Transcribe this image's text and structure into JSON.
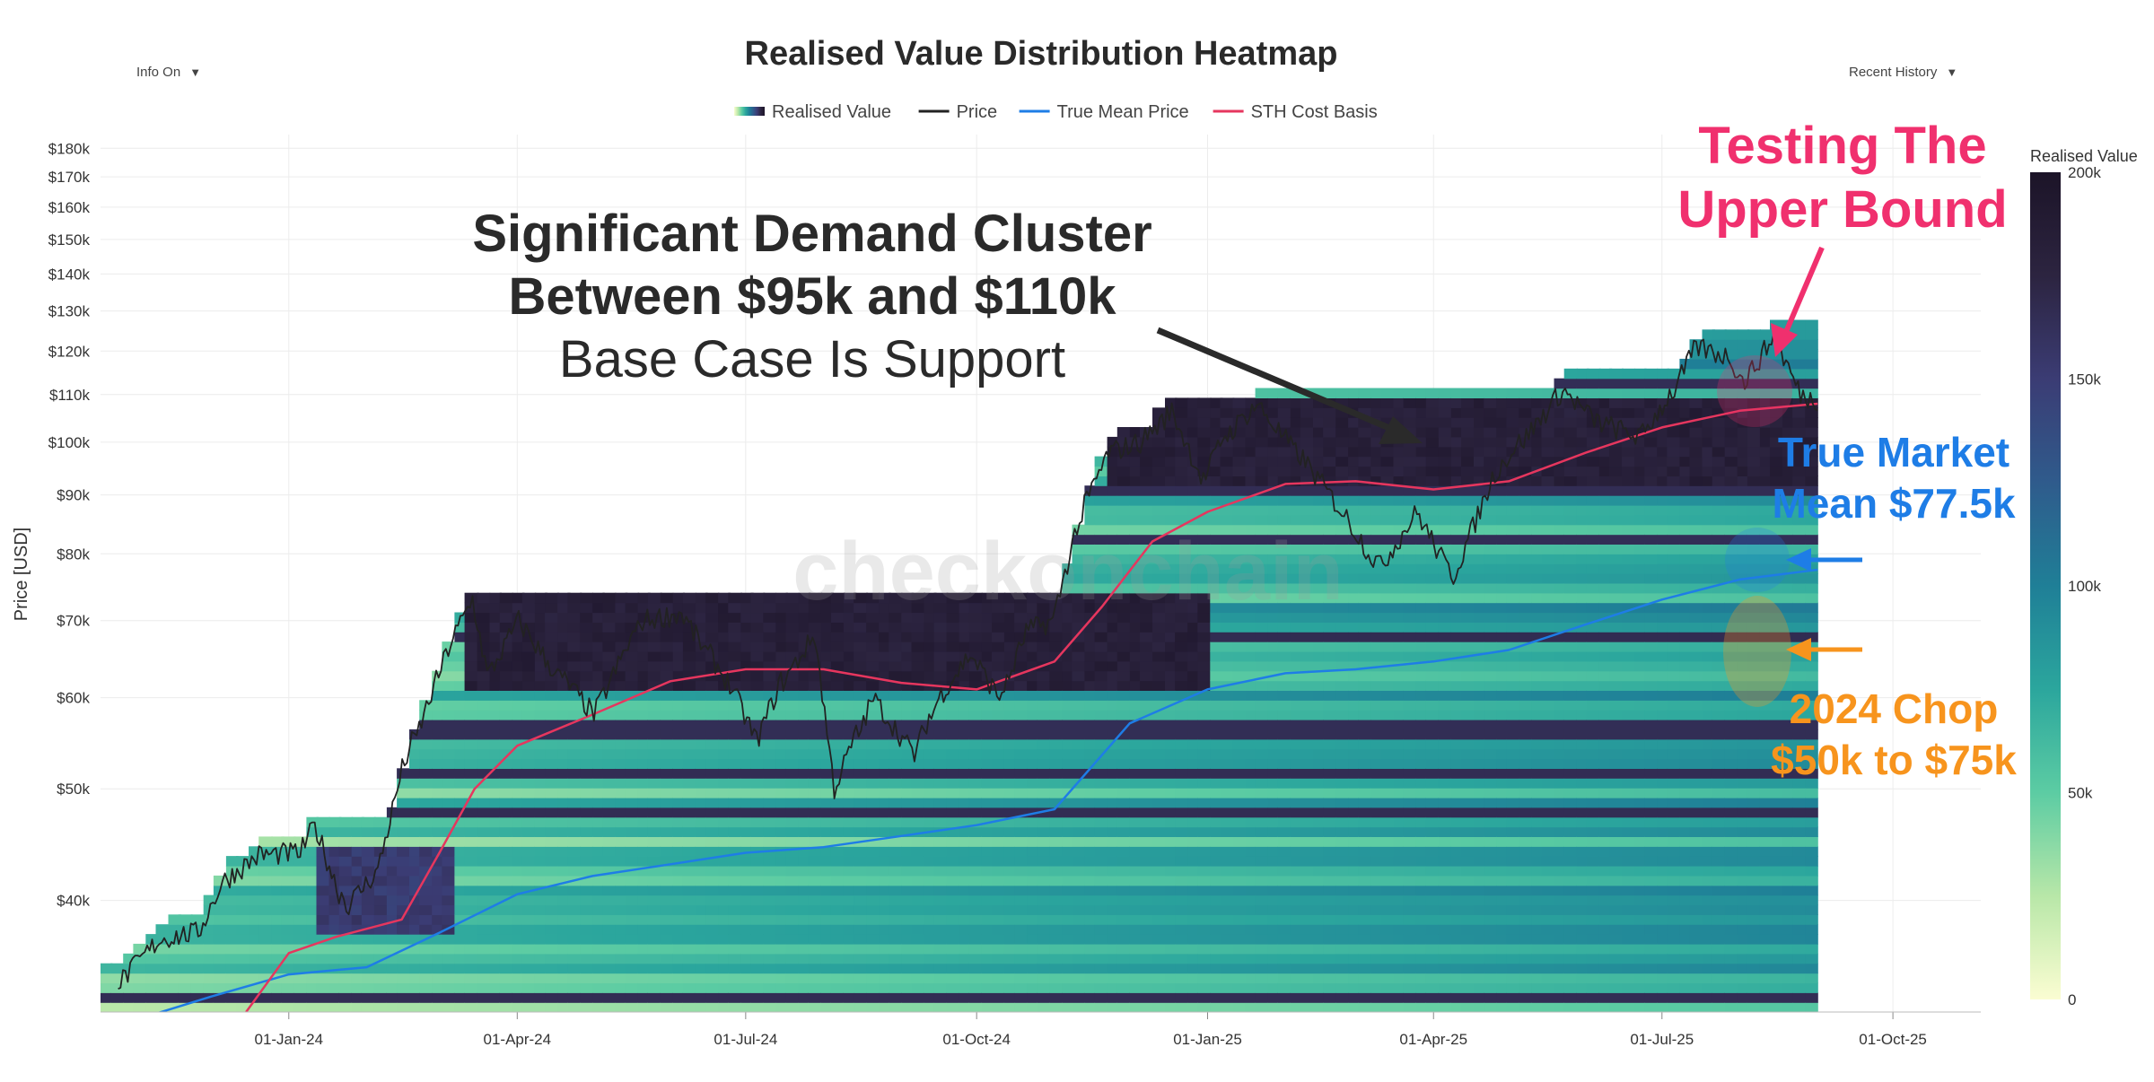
{
  "controls": {
    "info_toggle": "Info On",
    "range_select": "Recent History",
    "caret": "▼"
  },
  "chart_data": {
    "type": "heatmap",
    "title": "Realised Value Distribution Heatmap",
    "ylabel": "Price [USD]",
    "yscale": "log",
    "ylim": [
      32000,
      185000
    ],
    "xlim": [
      "2023-10-18",
      "2025-11-05"
    ],
    "x_ticks": [
      {
        "date": "2024-01-01",
        "label": "01-Jan-24"
      },
      {
        "date": "2024-04-01",
        "label": "01-Apr-24"
      },
      {
        "date": "2024-07-01",
        "label": "01-Jul-24"
      },
      {
        "date": "2024-10-01",
        "label": "01-Oct-24"
      },
      {
        "date": "2025-01-01",
        "label": "01-Jan-25"
      },
      {
        "date": "2025-04-01",
        "label": "01-Apr-25"
      },
      {
        "date": "2025-07-01",
        "label": "01-Jul-25"
      },
      {
        "date": "2025-10-01",
        "label": "01-Oct-25"
      }
    ],
    "y_ticks": [
      {
        "value": 40000,
        "label": "$40k"
      },
      {
        "value": 50000,
        "label": "$50k"
      },
      {
        "value": 60000,
        "label": "$60k"
      },
      {
        "value": 70000,
        "label": "$70k"
      },
      {
        "value": 80000,
        "label": "$80k"
      },
      {
        "value": 90000,
        "label": "$90k"
      },
      {
        "value": 100000,
        "label": "$100k"
      },
      {
        "value": 110000,
        "label": "$110k"
      },
      {
        "value": 120000,
        "label": "$120k"
      },
      {
        "value": 130000,
        "label": "$130k"
      },
      {
        "value": 140000,
        "label": "$140k"
      },
      {
        "value": 150000,
        "label": "$150k"
      },
      {
        "value": 160000,
        "label": "$160k"
      },
      {
        "value": 170000,
        "label": "$170k"
      },
      {
        "value": 180000,
        "label": "$180k"
      }
    ],
    "legend": [
      {
        "name": "Realised Value",
        "kind": "gradient"
      },
      {
        "name": "Price",
        "kind": "line",
        "color": "#222222"
      },
      {
        "name": "True Mean Price",
        "kind": "line",
        "color": "#1e7de6"
      },
      {
        "name": "STH Cost Basis",
        "kind": "line",
        "color": "#e6365e"
      }
    ],
    "colorbar": {
      "title": "Realised Value",
      "ticks": [
        {
          "value": 0,
          "label": "0"
        },
        {
          "value": 50000,
          "label": "50k"
        },
        {
          "value": 100000,
          "label": "100k"
        },
        {
          "value": 150000,
          "label": "150k"
        },
        {
          "value": 200000,
          "label": "200k"
        }
      ],
      "colors": [
        "#fbfdd2",
        "#b8e7a8",
        "#5ccca3",
        "#2ba69d",
        "#1f7f97",
        "#2f5b8c",
        "#3b3c74",
        "#2c2440",
        "#1c1428"
      ]
    },
    "series": [
      {
        "name": "Price",
        "color": "#222222",
        "points": [
          [
            "2023-10-25",
            34000
          ],
          [
            "2023-11-10",
            37000
          ],
          [
            "2023-11-25",
            37500
          ],
          [
            "2023-12-05",
            41500
          ],
          [
            "2023-12-20",
            43800
          ],
          [
            "2024-01-05",
            44000
          ],
          [
            "2024-01-11",
            46500
          ],
          [
            "2024-01-23",
            39500
          ],
          [
            "2024-02-05",
            42500
          ],
          [
            "2024-02-15",
            52000
          ],
          [
            "2024-02-28",
            62000
          ],
          [
            "2024-03-05",
            67000
          ],
          [
            "2024-03-14",
            73000
          ],
          [
            "2024-03-20",
            63000
          ],
          [
            "2024-04-01",
            70000
          ],
          [
            "2024-04-15",
            63500
          ],
          [
            "2024-05-01",
            58000
          ],
          [
            "2024-05-20",
            70000
          ],
          [
            "2024-06-05",
            71000
          ],
          [
            "2024-06-25",
            61000
          ],
          [
            "2024-07-05",
            55000
          ],
          [
            "2024-07-15",
            62000
          ],
          [
            "2024-07-28",
            68000
          ],
          [
            "2024-08-05",
            50000
          ],
          [
            "2024-08-20",
            60000
          ],
          [
            "2024-09-06",
            53500
          ],
          [
            "2024-09-15",
            60000
          ],
          [
            "2024-09-28",
            65500
          ],
          [
            "2024-10-10",
            60000
          ],
          [
            "2024-10-20",
            68500
          ],
          [
            "2024-10-31",
            70000
          ],
          [
            "2024-11-12",
            88000
          ],
          [
            "2024-11-22",
            98000
          ],
          [
            "2024-12-05",
            100000
          ],
          [
            "2024-12-17",
            106500
          ],
          [
            "2024-12-30",
            92500
          ],
          [
            "2025-01-07",
            101000
          ],
          [
            "2025-01-20",
            108000
          ],
          [
            "2025-02-05",
            98000
          ],
          [
            "2025-02-25",
            86000
          ],
          [
            "2025-03-10",
            78000
          ],
          [
            "2025-03-25",
            87000
          ],
          [
            "2025-04-08",
            76500
          ],
          [
            "2025-04-25",
            94000
          ],
          [
            "2025-05-10",
            103000
          ],
          [
            "2025-05-22",
            111000
          ],
          [
            "2025-06-05",
            104000
          ],
          [
            "2025-06-22",
            101000
          ],
          [
            "2025-07-03",
            109000
          ],
          [
            "2025-07-14",
            121000
          ],
          [
            "2025-07-28",
            118500
          ],
          [
            "2025-08-02",
            113000
          ],
          [
            "2025-08-14",
            123500
          ],
          [
            "2025-08-25",
            110000
          ],
          [
            "2025-09-01",
            108500
          ]
        ]
      },
      {
        "name": "True Mean Price",
        "color": "#1e7de6",
        "points": [
          [
            "2023-11-01",
            31500
          ],
          [
            "2023-12-01",
            33000
          ],
          [
            "2024-01-01",
            34500
          ],
          [
            "2024-02-01",
            35000
          ],
          [
            "2024-03-01",
            37500
          ],
          [
            "2024-04-01",
            40500
          ],
          [
            "2024-05-01",
            42000
          ],
          [
            "2024-06-01",
            43000
          ],
          [
            "2024-07-01",
            44000
          ],
          [
            "2024-08-01",
            44500
          ],
          [
            "2024-09-01",
            45500
          ],
          [
            "2024-10-01",
            46500
          ],
          [
            "2024-11-01",
            48000
          ],
          [
            "2024-12-01",
            57000
          ],
          [
            "2025-01-01",
            61000
          ],
          [
            "2025-02-01",
            63000
          ],
          [
            "2025-03-01",
            63500
          ],
          [
            "2025-04-01",
            64500
          ],
          [
            "2025-05-01",
            66000
          ],
          [
            "2025-06-01",
            69500
          ],
          [
            "2025-07-01",
            73000
          ],
          [
            "2025-08-01",
            76000
          ],
          [
            "2025-09-01",
            77500
          ]
        ]
      },
      {
        "name": "STH Cost Basis",
        "color": "#e6365e",
        "points": [
          [
            "2023-12-15",
            32000
          ],
          [
            "2024-01-01",
            36000
          ],
          [
            "2024-01-20",
            37200
          ],
          [
            "2024-02-15",
            38500
          ],
          [
            "2024-03-01",
            44000
          ],
          [
            "2024-03-15",
            50000
          ],
          [
            "2024-04-01",
            54500
          ],
          [
            "2024-05-01",
            58000
          ],
          [
            "2024-06-01",
            62000
          ],
          [
            "2024-07-01",
            63500
          ],
          [
            "2024-08-01",
            63500
          ],
          [
            "2024-09-01",
            61800
          ],
          [
            "2024-10-01",
            61000
          ],
          [
            "2024-11-01",
            64500
          ],
          [
            "2024-11-20",
            72000
          ],
          [
            "2024-12-10",
            82000
          ],
          [
            "2025-01-01",
            87000
          ],
          [
            "2025-02-01",
            92000
          ],
          [
            "2025-03-01",
            92500
          ],
          [
            "2025-04-01",
            91000
          ],
          [
            "2025-05-01",
            92500
          ],
          [
            "2025-06-01",
            98000
          ],
          [
            "2025-07-01",
            103000
          ],
          [
            "2025-08-01",
            106500
          ],
          [
            "2025-09-01",
            108000
          ]
        ]
      }
    ],
    "heatmap_bands": [
      {
        "from": "2024-03-10",
        "to": "2025-01-01",
        "y0": 62000,
        "y1": 73500,
        "intensity": 0.95
      },
      {
        "from": "2024-01-10",
        "to": "2024-03-05",
        "y0": 38000,
        "y1": 44000,
        "intensity": 0.8
      },
      {
        "from": "2024-11-20",
        "to": "2025-09-01",
        "y0": 93000,
        "y1": 108000,
        "intensity": 0.95
      },
      {
        "from": "2025-07-10",
        "to": "2025-09-01",
        "y0": 110000,
        "y1": 123000,
        "intensity": 0.35
      }
    ],
    "annotations": [
      {
        "text": "Significant Demand Cluster",
        "color": "#2a2a2a",
        "weight": "bold"
      },
      {
        "text": "Between $95k and $110k",
        "color": "#2a2a2a",
        "weight": "bold"
      },
      {
        "text": "Base Case Is Support",
        "color": "#2a2a2a",
        "weight": "normal"
      },
      {
        "text": "Testing The",
        "color": "#f0306e",
        "weight": "bold"
      },
      {
        "text": "Upper Bound",
        "color": "#f0306e",
        "weight": "bold"
      },
      {
        "text": "True Market",
        "color": "#1e7de6",
        "weight": "bold"
      },
      {
        "text": "Mean $77.5k",
        "color": "#1e7de6",
        "weight": "bold"
      },
      {
        "text": "2024 Chop",
        "color": "#f7941d",
        "weight": "bold"
      },
      {
        "text": "$50k to $75k",
        "color": "#f7941d",
        "weight": "bold"
      }
    ],
    "watermark": "checkonchain"
  }
}
